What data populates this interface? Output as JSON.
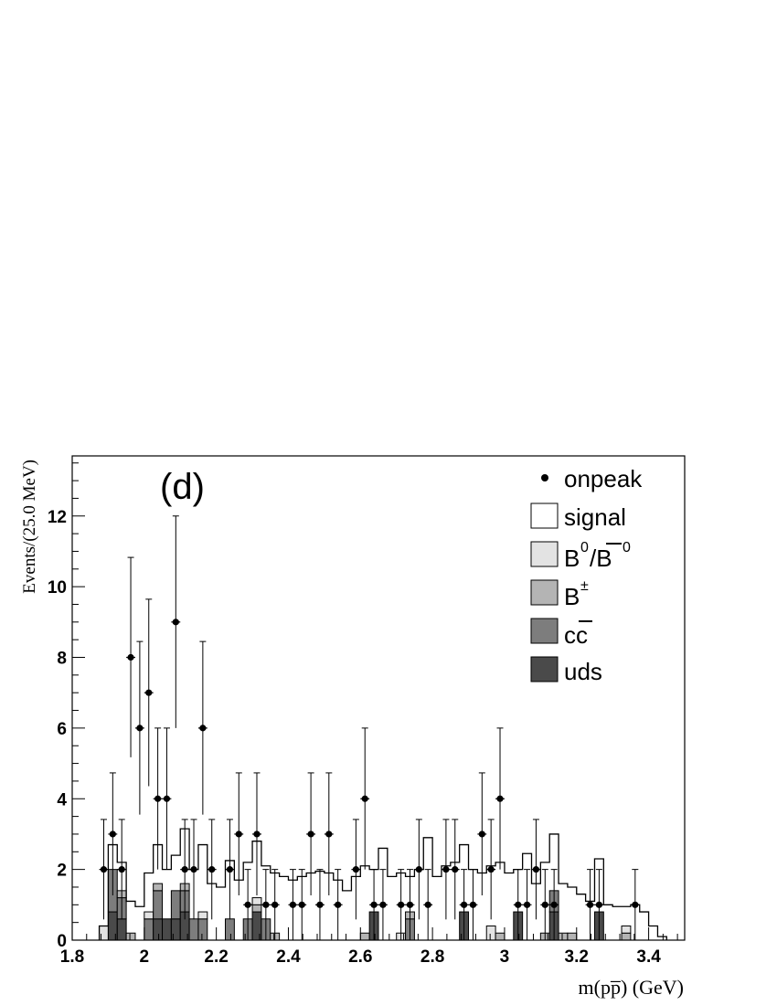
{
  "chart_data": {
    "type": "bar",
    "panel_label": "(d)",
    "xlabel": "m(pp̅) (GeV)",
    "ylabel": "Events/(25.0 MeV)",
    "xlim": [
      1.8,
      3.5
    ],
    "ylim": [
      0,
      13.7
    ],
    "bin_width": 0.025,
    "grid": false,
    "legend_position": "top-right",
    "x_ticks": [
      "1.8",
      "2",
      "2.2",
      "2.4",
      "2.6",
      "2.8",
      "3",
      "3.2",
      "3.4"
    ],
    "y_ticks": [
      "0",
      "2",
      "4",
      "6",
      "8",
      "10",
      "12"
    ],
    "legend": {
      "onpeak": "onpeak",
      "signal": "signal",
      "b0": "B0/B0bar",
      "bpm": "B±",
      "ccbar": "cc̅",
      "uds": "uds"
    },
    "colors": {
      "signal": "#ffffff",
      "b0": "#e3e3e3",
      "bpm": "#b4b4b4",
      "ccbar": "#7d7d7d",
      "uds": "#4a4a4a",
      "onpeak": "#000000"
    },
    "stack_bins_x": [
      1.875,
      1.9,
      1.925,
      1.95,
      1.975,
      2.0,
      2.025,
      2.05,
      2.075,
      2.1,
      2.125,
      2.15,
      2.175,
      2.2,
      2.225,
      2.25,
      2.275,
      2.3,
      2.325,
      2.35,
      2.375,
      2.4,
      2.425,
      2.45,
      2.475,
      2.5,
      2.525,
      2.55,
      2.575,
      2.6,
      2.625,
      2.65,
      2.675,
      2.7,
      2.725,
      2.75,
      2.775,
      2.8,
      2.825,
      2.85,
      2.875,
      2.9,
      2.925,
      2.95,
      2.975,
      3.0,
      3.025,
      3.05,
      3.075,
      3.1,
      3.125,
      3.15,
      3.175,
      3.2,
      3.225,
      3.25,
      3.275,
      3.3,
      3.325,
      3.35,
      3.375,
      3.4,
      3.425
    ],
    "series": [
      {
        "name": "uds",
        "values": [
          0,
          0.8,
          0.6,
          0,
          0,
          0,
          0.6,
          0.6,
          0.6,
          0.8,
          0,
          0,
          0,
          0,
          0,
          0,
          0,
          0.8,
          0,
          0,
          0,
          0,
          0,
          0,
          0,
          0,
          0,
          0,
          0,
          0,
          0.8,
          0,
          0,
          0,
          0,
          0,
          0,
          0,
          0,
          0,
          0.8,
          0,
          0,
          0,
          0,
          0,
          0.8,
          0,
          0,
          0,
          0.8,
          0,
          0,
          0,
          0,
          0.8,
          0,
          0,
          0,
          0,
          0,
          0,
          0
        ]
      },
      {
        "name": "cc̅",
        "values": [
          0,
          1.2,
          0.6,
          0,
          0,
          0.6,
          0.8,
          0,
          0.8,
          0.6,
          0.6,
          0.6,
          0,
          0,
          0.6,
          0,
          0.6,
          0,
          0.6,
          0,
          0,
          0,
          0,
          0,
          0,
          0,
          0,
          0,
          0,
          0,
          0,
          0,
          0,
          0,
          0.6,
          0,
          0,
          0,
          0,
          0,
          0,
          0,
          0,
          0,
          0,
          0,
          0,
          0,
          0,
          0,
          0.6,
          0,
          0,
          0,
          0,
          0,
          0,
          0,
          0,
          0,
          0,
          0,
          0
        ]
      },
      {
        "name": "B±",
        "values": [
          0,
          0,
          0.2,
          0.2,
          0,
          0,
          0.2,
          0,
          0,
          0.2,
          0,
          0,
          0,
          0,
          0,
          0,
          0,
          0.2,
          0,
          0.2,
          0,
          0,
          0,
          0,
          0,
          0,
          0,
          0,
          0,
          0.2,
          0,
          0,
          0,
          0,
          0.2,
          0,
          0,
          0,
          0,
          0,
          0,
          0,
          0,
          0,
          0.2,
          0,
          0,
          0,
          0,
          0.2,
          0,
          0.2,
          0.2,
          0,
          0,
          0,
          0,
          0,
          0.2,
          0,
          0,
          0,
          0
        ]
      },
      {
        "name": "B0/B0bar",
        "values": [
          0.4,
          0,
          0,
          0,
          0,
          0.2,
          0,
          0,
          0,
          0,
          0,
          0.2,
          0,
          0,
          0,
          0,
          0,
          0.2,
          0,
          0,
          0,
          0,
          0,
          0,
          0,
          0,
          0,
          0,
          0,
          0,
          0,
          0,
          0,
          0.2,
          0,
          0,
          0,
          0,
          0,
          0,
          0,
          0,
          0,
          0.4,
          0,
          0,
          0,
          0,
          0,
          0,
          0,
          0,
          0,
          0,
          0,
          0,
          0,
          0,
          0.2,
          0,
          0,
          0,
          0
        ]
      }
    ],
    "signal_total": {
      "x": [
        1.875,
        1.9,
        1.925,
        1.95,
        1.975,
        2.0,
        2.025,
        2.05,
        2.075,
        2.1,
        2.125,
        2.15,
        2.175,
        2.2,
        2.225,
        2.25,
        2.275,
        2.3,
        2.325,
        2.35,
        2.375,
        2.4,
        2.425,
        2.45,
        2.475,
        2.5,
        2.525,
        2.55,
        2.575,
        2.6,
        2.625,
        2.65,
        2.675,
        2.7,
        2.725,
        2.75,
        2.775,
        2.8,
        2.825,
        2.85,
        2.875,
        2.9,
        2.925,
        2.95,
        2.975,
        3.0,
        3.025,
        3.05,
        3.075,
        3.1,
        3.125,
        3.15,
        3.175,
        3.2,
        3.225,
        3.25,
        3.275,
        3.3,
        3.325,
        3.35,
        3.375,
        3.4,
        3.425
      ],
      "values": [
        0.4,
        2.7,
        2.2,
        1.1,
        0.95,
        1.9,
        2.7,
        2.0,
        2.4,
        3.15,
        2.0,
        2.7,
        1.6,
        1.5,
        2.25,
        1.7,
        2.2,
        2.8,
        2.1,
        1.9,
        1.8,
        1.7,
        1.8,
        1.9,
        1.95,
        1.9,
        1.7,
        1.4,
        1.8,
        2.1,
        2.0,
        2.6,
        1.8,
        1.9,
        1.8,
        2.0,
        2.9,
        1.8,
        2.1,
        2.2,
        2.7,
        2.0,
        1.9,
        2.1,
        2.2,
        1.9,
        2.0,
        2.45,
        1.6,
        2.2,
        3.0,
        1.6,
        1.5,
        1.3,
        1.1,
        2.3,
        1.0,
        0.95,
        0.95,
        1.0,
        0.8,
        0.4,
        0.1
      ]
    },
    "onpeak_points": {
      "x": [
        1.8875,
        1.9125,
        1.9375,
        1.9625,
        1.9875,
        2.0125,
        2.0375,
        2.0625,
        2.0875,
        2.1125,
        2.1375,
        2.1625,
        2.1875,
        2.2375,
        2.2625,
        2.2875,
        2.3125,
        2.3375,
        2.3625,
        2.4125,
        2.4375,
        2.4625,
        2.4875,
        2.5125,
        2.5375,
        2.5875,
        2.6125,
        2.6375,
        2.6625,
        2.7125,
        2.7375,
        2.7625,
        2.7875,
        2.8375,
        2.8625,
        2.8875,
        2.9125,
        2.9375,
        2.9625,
        2.9875,
        3.0375,
        3.0625,
        3.0875,
        3.1125,
        3.1375,
        3.2375,
        3.2625,
        3.3625
      ],
      "y": [
        2,
        3,
        2,
        8,
        6,
        7,
        4,
        4,
        9,
        2,
        2,
        6,
        2,
        2,
        3,
        1,
        3,
        1,
        1,
        1,
        1,
        3,
        1,
        3,
        1,
        2,
        4,
        1,
        1,
        1,
        1,
        2,
        1,
        2,
        2,
        1,
        1,
        3,
        2,
        4,
        1,
        1,
        2,
        1,
        1,
        1,
        1,
        1
      ]
    }
  }
}
